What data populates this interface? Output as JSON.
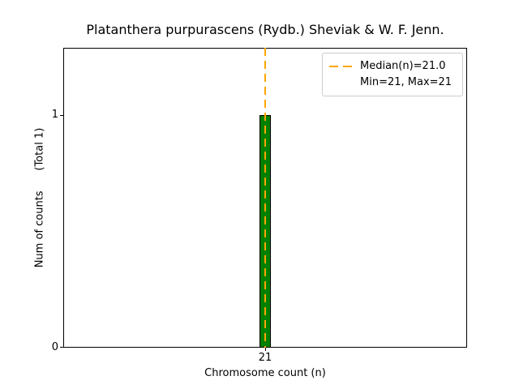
{
  "chart_data": {
    "type": "bar",
    "title": "Platanthera purpurascens (Rydb.) Sheviak & W. F. Jenn.",
    "xlabel": "Chromosome count (n)",
    "ylabel": "Num of counts      (Total 1)",
    "categories": [
      21
    ],
    "values": [
      1
    ],
    "total_counts": 1,
    "xlim": [
      20.5,
      21.5
    ],
    "ylim": [
      0,
      1.29
    ],
    "xtick_values": [
      21
    ],
    "xtick_labels": [
      "21"
    ],
    "ytick_values": [
      0,
      1
    ],
    "ytick_labels": [
      "0",
      "1"
    ],
    "median": 21.0,
    "min": 21,
    "max": 21,
    "bar_color": "#008000",
    "bar_edge_color": "#000000",
    "median_color": "#ffa500",
    "legend": [
      "Median(n)=21.0",
      "Min=21, Max=21"
    ],
    "legend_position": "upper right",
    "grid": false
  }
}
